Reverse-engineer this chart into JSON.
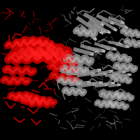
{
  "background_color": "#000000",
  "fig_width": 2.0,
  "fig_height": 2.0,
  "dpi": 100,
  "red_color": "#cc0000",
  "red_dark": "#880000",
  "red_light": "#ff2020",
  "gray_color": "#909090",
  "gray_dark": "#505050",
  "gray_light": "#c0c0c0",
  "seed": 42
}
